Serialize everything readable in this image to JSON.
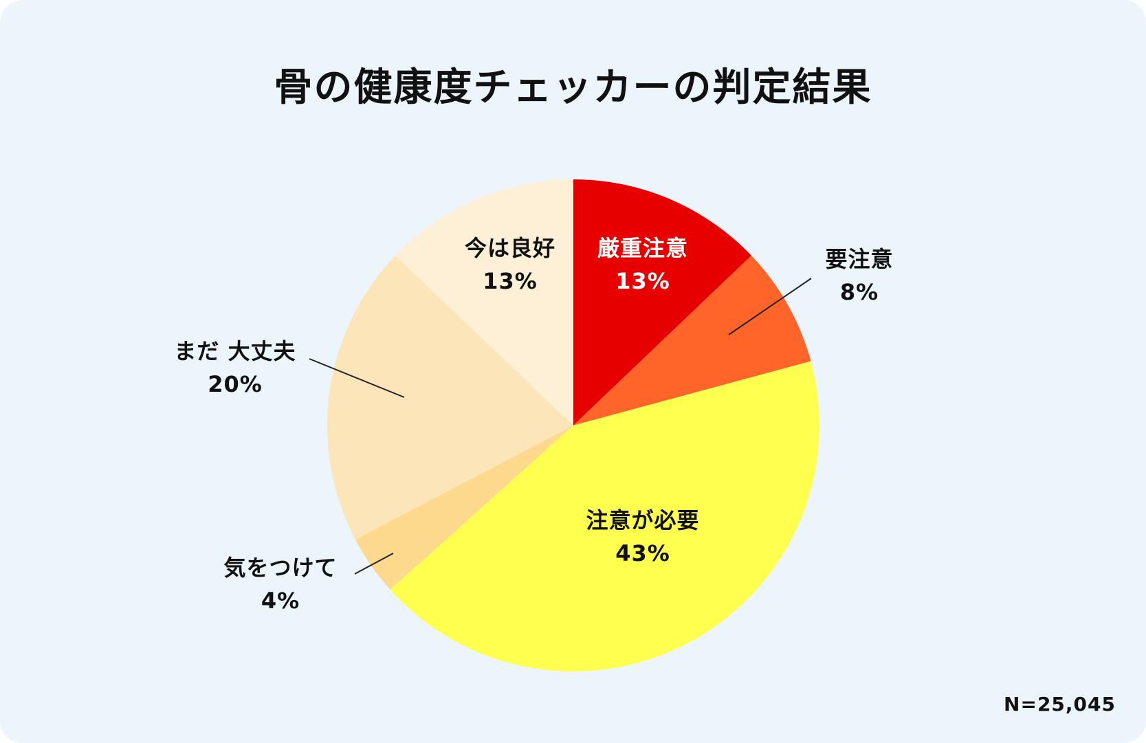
{
  "title": "骨の健康度チェッカーの判定結果",
  "sample_note": "N=25,045",
  "chart_data": {
    "type": "pie",
    "title": "骨の健康度チェッカーの判定結果",
    "start": "12 o'clock",
    "direction": "clockwise",
    "slices": [
      {
        "label": "厳重注意",
        "value": 13,
        "display": "13%",
        "color": "#e60000",
        "text_color": "#ffffff",
        "label_inside": true
      },
      {
        "label": "要注意",
        "value": 8,
        "display": "8%",
        "color": "#ff6428",
        "text_color": "#111111",
        "label_inside": false
      },
      {
        "label": "注意が必要",
        "value": 43,
        "display": "43%",
        "color": "#ffff50",
        "text_color": "#111111",
        "label_inside": true
      },
      {
        "label": "気をつけて",
        "value": 4,
        "display": "4%",
        "color": "#fdd98e",
        "text_color": "#111111",
        "label_inside": false
      },
      {
        "label": "まだ 大丈夫",
        "value": 20,
        "display": "20%",
        "color": "#fce5b8",
        "text_color": "#111111",
        "label_inside": false
      },
      {
        "label": "今は良好",
        "value": 13,
        "display": "13%",
        "color": "#fdf0d6",
        "text_color": "#111111",
        "label_inside": true
      }
    ]
  }
}
